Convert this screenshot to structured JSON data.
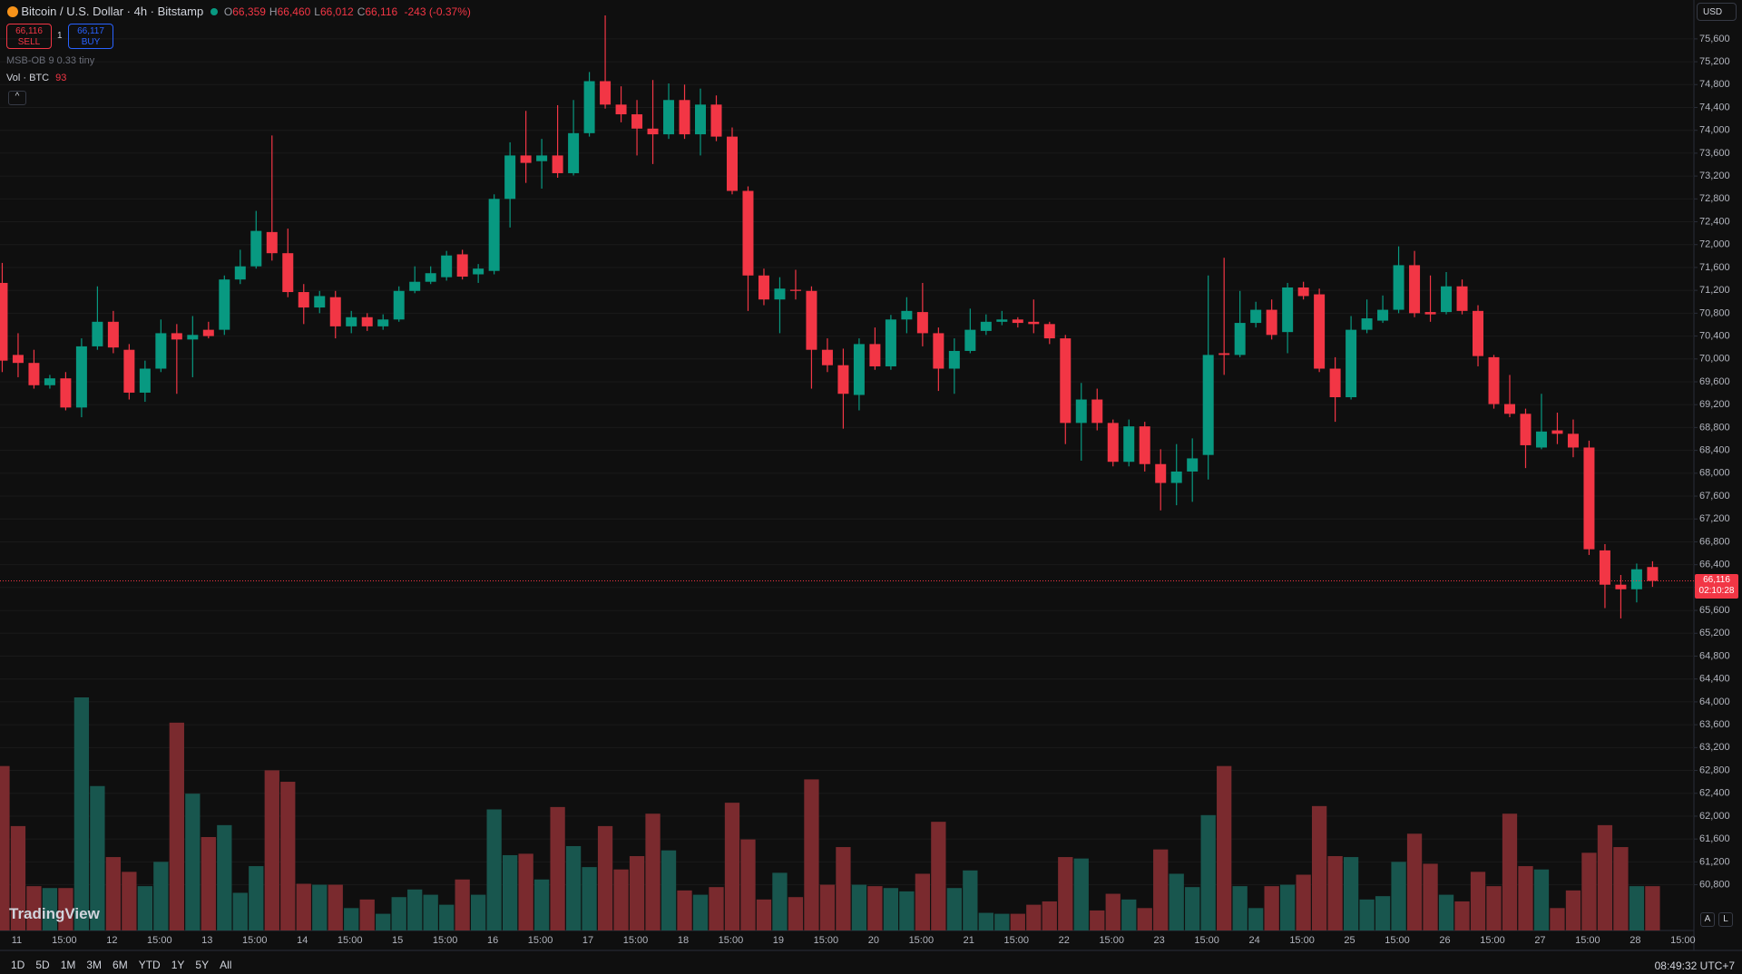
{
  "chart_data": {
    "type": "candlestick",
    "title": "Bitcoin / U.S. Dollar · 4h · Bitstamp",
    "legend_items": [
      {
        "key": "O",
        "value": "66,359"
      },
      {
        "key": "H",
        "value": "66,460"
      },
      {
        "key": "L",
        "value": "66,012"
      },
      {
        "key": "C",
        "value": "66,116"
      }
    ],
    "change": "-243 (-0.37%)",
    "trade": {
      "sell_price": "66,116",
      "sell": "SELL",
      "quantity": 1,
      "buy_price": "66,117",
      "buy": "BUY"
    },
    "indicator": "MSB-OB 9 0.33 tiny",
    "volume_label": "Vol · BTC",
    "currency": "USD",
    "logo": "TradingView",
    "last_price_label": "66,116",
    "countdown": "02:10:28",
    "range_buttons": [
      "1D",
      "5D",
      "1M",
      "3M",
      "6M",
      "YTD",
      "1Y",
      "5Y",
      "All"
    ],
    "clock": "08:49:32 UTC+7",
    "scale_buttons": [
      "A",
      "L"
    ],
    "up_color": "#089981",
    "down_color": "#f23645",
    "volume_up_color": "#18564e",
    "volume_down_color": "#7a2a2e",
    "grid": true,
    "open": [
      71330,
      70070,
      69930,
      69540,
      69660,
      69150,
      70220,
      70650,
      70160,
      69410,
      69830,
      70450,
      70340,
      70510,
      70510,
      71390,
      71620,
      72220,
      71850,
      71170,
      70900,
      71080,
      70570,
      70730,
      70570,
      70690,
      71190,
      71350,
      71430,
      71830,
      71480,
      71540,
      72800,
      73560,
      73460,
      73560,
      73250,
      73950,
      74860,
      74450,
      74280,
      74030,
      73930,
      74530,
      73930,
      74450,
      73890,
      72940,
      71460,
      71040,
      71210,
      71190,
      70160,
      69890,
      69370,
      70260,
      69870,
      70690,
      70820,
      70450,
      69830,
      70140,
      70490,
      70650,
      70690,
      70650,
      70610,
      70360,
      68880,
      69290,
      68880,
      68200,
      68820,
      68160,
      67830,
      68030,
      68320,
      70100,
      70070,
      70630,
      70860,
      70470,
      71250,
      71130,
      69830,
      69330,
      70510,
      70670,
      70860,
      71640,
      70820,
      70820,
      71270,
      70840,
      70030,
      69210,
      69040,
      68450,
      68750,
      68690,
      68450,
      66650,
      66050,
      65970,
      66359
    ],
    "high": [
      71680,
      70450,
      70160,
      69720,
      69770,
      70360,
      71270,
      70840,
      70260,
      69970,
      70690,
      70610,
      70750,
      70650,
      71460,
      71910,
      72590,
      73910,
      72280,
      71310,
      71190,
      71190,
      70840,
      70800,
      70780,
      71270,
      71620,
      71620,
      71890,
      71910,
      71660,
      72880,
      73790,
      74340,
      73850,
      74440,
      74530,
      75020,
      76010,
      74770,
      74530,
      74880,
      74820,
      74800,
      74730,
      74610,
      74050,
      73020,
      71580,
      71430,
      71560,
      71270,
      70360,
      70180,
      70360,
      70550,
      70770,
      71080,
      71330,
      70550,
      70360,
      70880,
      70780,
      70840,
      70730,
      71040,
      70650,
      70420,
      69580,
      69480,
      68940,
      68940,
      68900,
      68420,
      68510,
      68610,
      71460,
      71770,
      71190,
      71000,
      71040,
      71330,
      71350,
      71230,
      70030,
      70750,
      71040,
      71110,
      71970,
      71890,
      71460,
      71520,
      71390,
      70940,
      70070,
      69720,
      69130,
      69390,
      69060,
      68940,
      68570,
      66760,
      66220,
      66420,
      66460
    ],
    "low": [
      69770,
      69680,
      69480,
      69480,
      69100,
      68980,
      70160,
      70100,
      69290,
      69250,
      69770,
      69390,
      69680,
      70360,
      70420,
      71310,
      71580,
      71720,
      71080,
      70610,
      70800,
      70360,
      70450,
      70490,
      70510,
      70650,
      71150,
      71310,
      71370,
      71390,
      71330,
      71480,
      72300,
      73080,
      72980,
      73170,
      73210,
      73890,
      74380,
      74140,
      73560,
      73410,
      73850,
      73850,
      73560,
      73810,
      72880,
      70840,
      70940,
      70450,
      71040,
      69480,
      69770,
      68780,
      69100,
      69810,
      69810,
      70450,
      70220,
      69440,
      69390,
      70100,
      70420,
      70590,
      70550,
      70450,
      70260,
      68510,
      68220,
      68750,
      68120,
      68120,
      68030,
      67350,
      67440,
      67500,
      67890,
      69720,
      70030,
      70550,
      70340,
      70100,
      71040,
      69770,
      68900,
      69290,
      70450,
      70630,
      70800,
      70730,
      70650,
      70780,
      70780,
      69870,
      69130,
      68980,
      68090,
      68420,
      68510,
      68280,
      66570,
      65640,
      65460,
      65740,
      66012
    ],
    "close": [
      69970,
      69930,
      69540,
      69660,
      69150,
      70220,
      70650,
      70200,
      69410,
      69830,
      70450,
      70340,
      70420,
      70400,
      71390,
      71620,
      72240,
      71850,
      71170,
      70900,
      71100,
      70570,
      70730,
      70570,
      70690,
      71190,
      71350,
      71500,
      71810,
      71440,
      71580,
      72800,
      73560,
      73430,
      73560,
      73250,
      73950,
      74860,
      74450,
      74280,
      74030,
      73930,
      74530,
      73930,
      74450,
      73890,
      72940,
      71460,
      71040,
      71230,
      71190,
      70160,
      69890,
      69390,
      70260,
      69870,
      70690,
      70840,
      70450,
      69830,
      70140,
      70510,
      70650,
      70690,
      70630,
      70610,
      70360,
      68880,
      69290,
      68880,
      68200,
      68820,
      68160,
      67830,
      68030,
      68260,
      70070,
      70070,
      70630,
      70860,
      70420,
      71250,
      71100,
      69830,
      69330,
      70510,
      70710,
      70860,
      71640,
      70800,
      70780,
      71270,
      70840,
      70050,
      69210,
      69040,
      68490,
      68730,
      68690,
      68450,
      66670,
      66050,
      65970,
      66320,
      66116
    ],
    "volume": [
      345,
      219,
      93,
      89,
      89,
      489,
      303,
      154,
      123,
      93,
      144,
      436,
      287,
      196,
      221,
      79,
      135,
      336,
      312,
      98,
      96,
      96,
      47,
      65,
      35,
      70,
      86,
      75,
      54,
      107,
      75,
      254,
      158,
      161,
      107,
      259,
      177,
      133,
      219,
      128,
      156,
      245,
      168,
      84,
      75,
      91,
      268,
      191,
      65,
      121,
      70,
      317,
      96,
      175,
      96,
      93,
      89,
      82,
      119,
      228,
      89,
      126,
      37,
      35,
      35,
      54,
      61,
      154,
      151,
      42,
      77,
      65,
      47,
      170,
      119,
      91,
      242,
      345,
      93,
      47,
      93,
      96,
      117,
      261,
      156,
      154,
      65,
      72,
      144,
      203,
      140,
      75,
      61,
      123,
      93,
      245,
      135,
      128,
      47,
      84,
      163,
      221,
      175,
      93,
      93
    ],
    "xticks": [
      "11",
      "15:00",
      "12",
      "15:00",
      "13",
      "15:00",
      "14",
      "15:00",
      "15",
      "15:00",
      "16",
      "15:00",
      "17",
      "15:00",
      "18",
      "15:00",
      "19",
      "15:00",
      "20",
      "15:00",
      "21",
      "15:00",
      "22",
      "15:00",
      "23",
      "15:00",
      "24",
      "15:00",
      "25",
      "15:00",
      "26",
      "15:00",
      "27",
      "15:00",
      "28",
      "15:00"
    ],
    "ylim": [
      60000,
      76280
    ],
    "yticks": [
      {
        "value": 75600,
        "label": "75,600"
      },
      {
        "value": 75200,
        "label": "75,200"
      },
      {
        "value": 74800,
        "label": "74,800"
      },
      {
        "value": 74400,
        "label": "74,400"
      },
      {
        "value": 74000,
        "label": "74,000"
      },
      {
        "value": 73600,
        "label": "73,600"
      },
      {
        "value": 73200,
        "label": "73,200"
      },
      {
        "value": 72800,
        "label": "72,800"
      },
      {
        "value": 72400,
        "label": "72,400"
      },
      {
        "value": 72000,
        "label": "72,000"
      },
      {
        "value": 71600,
        "label": "71,600"
      },
      {
        "value": 71200,
        "label": "71,200"
      },
      {
        "value": 70800,
        "label": "70,800"
      },
      {
        "value": 70400,
        "label": "70,400"
      },
      {
        "value": 70000,
        "label": "70,000"
      },
      {
        "value": 69600,
        "label": "69,600"
      },
      {
        "value": 69200,
        "label": "69,200"
      },
      {
        "value": 68800,
        "label": "68,800"
      },
      {
        "value": 68400,
        "label": "68,400"
      },
      {
        "value": 68000,
        "label": "68,000"
      },
      {
        "value": 67600,
        "label": "67,600"
      },
      {
        "value": 67200,
        "label": "67,200"
      },
      {
        "value": 66800,
        "label": "66,800"
      },
      {
        "value": 66400,
        "label": "66,400"
      },
      {
        "value": 66000,
        "label": "66,000"
      },
      {
        "value": 65600,
        "label": "65,600"
      },
      {
        "value": 65200,
        "label": "65,200"
      },
      {
        "value": 64800,
        "label": "64,800"
      },
      {
        "value": 64400,
        "label": "64,400"
      },
      {
        "value": 64000,
        "label": "64,000"
      },
      {
        "value": 63600,
        "label": "63,600"
      },
      {
        "value": 63200,
        "label": "63,200"
      },
      {
        "value": 62800,
        "label": "62,800"
      },
      {
        "value": 62400,
        "label": "62,400"
      },
      {
        "value": 62000,
        "label": "62,000"
      },
      {
        "value": 61600,
        "label": "61,600"
      },
      {
        "value": 61200,
        "label": "61,200"
      },
      {
        "value": 60800,
        "label": "60,800"
      }
    ]
  }
}
